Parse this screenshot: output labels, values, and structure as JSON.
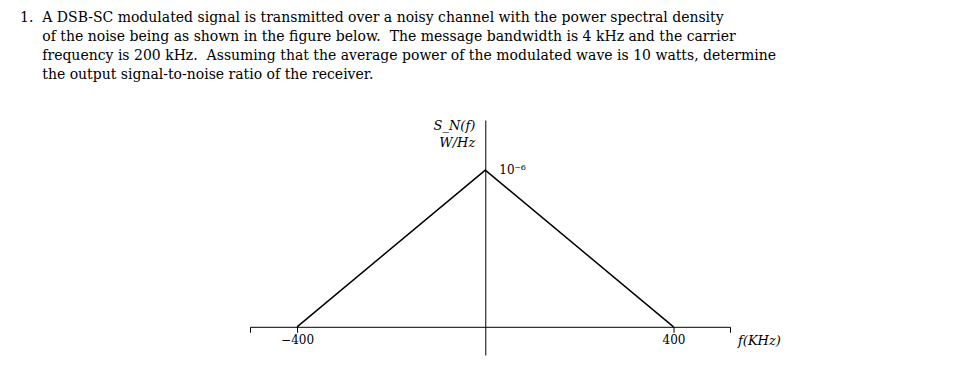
{
  "chart_data": {
    "type": "line",
    "title": [
      "1.  A DSB-SC modulated signal is transmitted over a noisy channel with the power spectral density",
      "     of the noise being as shown in the figure below.  The message bandwidth is 4 kHz and the carrier",
      "     frequency is 200 kHz.  Assuming that the average power of the modulated wave is 10 watts, determine",
      "     the output signal-to-noise ratio of the receiver."
    ],
    "x": [
      -400,
      0,
      400
    ],
    "values": [
      0,
      1,
      0
    ],
    "color": "#000000",
    "xlabel": "f(KHz)",
    "ylabel": [
      "S_N(f)",
      "W/Hz"
    ],
    "annotations": [
      "10⁻⁶"
    ],
    "xlim": [
      -500,
      520
    ],
    "ylim": [
      -0.18,
      1.32
    ],
    "xticks": [
      {
        "value": -400,
        "label": "−400"
      },
      400
    ],
    "yticks": []
  }
}
